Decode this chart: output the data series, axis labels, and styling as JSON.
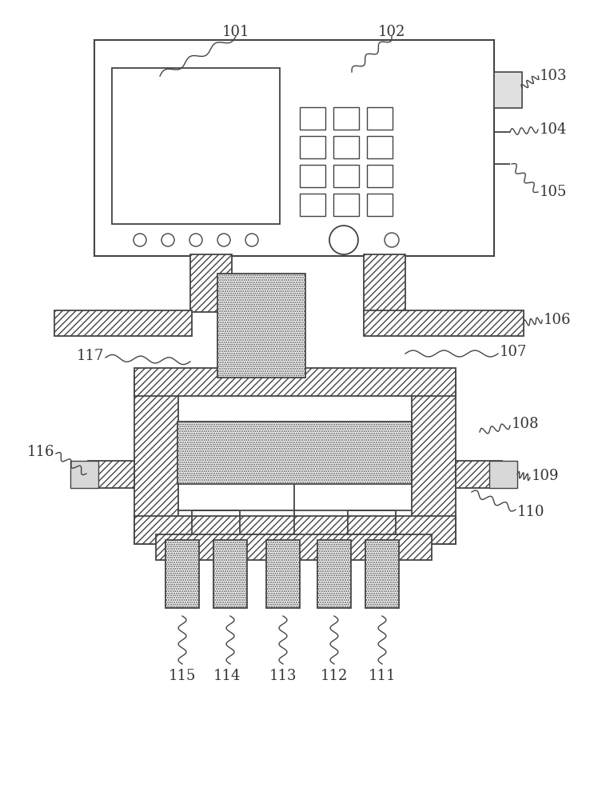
{
  "bg_color": "#ffffff",
  "line_color": "#444444",
  "lw": 1.3,
  "fig_w": 7.48,
  "fig_h": 10.0,
  "dpi": 100
}
